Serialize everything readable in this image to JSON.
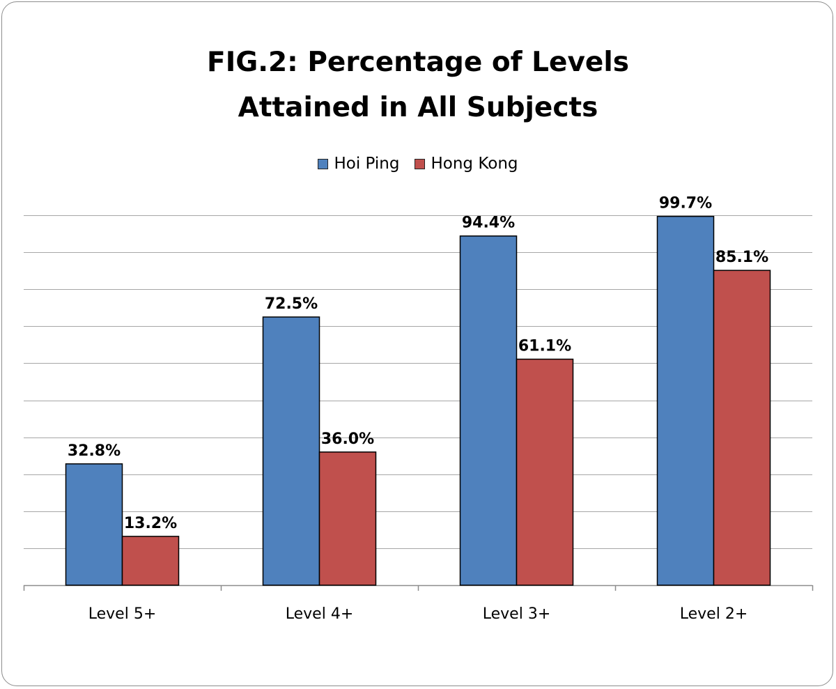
{
  "chart_data": {
    "type": "bar",
    "title_lines": [
      "FIG.2: Percentage of Levels",
      "Attained in All Subjects"
    ],
    "categories": [
      "Level 5+",
      "Level 4+",
      "Level 3+",
      "Level 2+"
    ],
    "series": [
      {
        "name": "Hoi Ping",
        "color": "#4f81bd",
        "values": [
          32.8,
          72.5,
          94.4,
          99.7
        ],
        "labels": [
          "32.8%",
          "72.5%",
          "94.4%",
          "99.7%"
        ]
      },
      {
        "name": "Hong Kong",
        "color": "#c0504d",
        "values": [
          13.2,
          36.0,
          61.1,
          85.1
        ],
        "labels": [
          "13.2%",
          "36.0%",
          "61.1%",
          "85.1%"
        ]
      }
    ],
    "ylim": [
      0,
      100
    ],
    "gridlines": true,
    "legend_position": "top"
  }
}
